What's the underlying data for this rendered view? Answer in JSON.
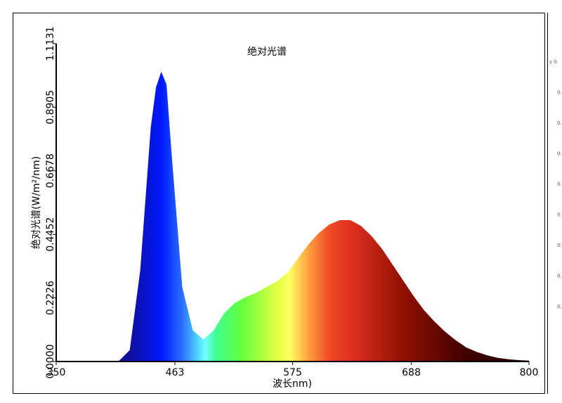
{
  "chart_data": {
    "type": "area",
    "title": "绝对光谱",
    "x_label": "波长nm)",
    "y_label": "绝对光谱(W/m²/nm)",
    "x": [
      400,
      410,
      420,
      430,
      440,
      445,
      450,
      455,
      460,
      470,
      480,
      490,
      500,
      510,
      520,
      530,
      540,
      550,
      560,
      570,
      580,
      590,
      600,
      610,
      620,
      630,
      640,
      650,
      660,
      670,
      680,
      690,
      700,
      710,
      720,
      730,
      740,
      750,
      760,
      770,
      780,
      790,
      800
    ],
    "values": [
      0,
      0.003,
      0.04,
      0.32,
      0.82,
      0.96,
      1.015,
      0.97,
      0.72,
      0.26,
      0.11,
      0.077,
      0.11,
      0.17,
      0.205,
      0.225,
      0.24,
      0.26,
      0.28,
      0.31,
      0.36,
      0.41,
      0.45,
      0.48,
      0.495,
      0.495,
      0.475,
      0.44,
      0.395,
      0.34,
      0.285,
      0.23,
      0.18,
      0.14,
      0.105,
      0.075,
      0.05,
      0.034,
      0.022,
      0.013,
      0.008,
      0.005,
      0.003
    ],
    "color_stops": [
      {
        "x": 420,
        "color": "#10109a"
      },
      {
        "x": 450,
        "color": "#0018ff"
      },
      {
        "x": 470,
        "color": "#2a70ff"
      },
      {
        "x": 485,
        "color": "#50d8ff"
      },
      {
        "x": 492,
        "color": "#70ffff"
      },
      {
        "x": 502,
        "color": "#40ff90"
      },
      {
        "x": 525,
        "color": "#60ff40"
      },
      {
        "x": 560,
        "color": "#e0ff40"
      },
      {
        "x": 572,
        "color": "#ffff60"
      },
      {
        "x": 590,
        "color": "#ffa040"
      },
      {
        "x": 610,
        "color": "#f04a24"
      },
      {
        "x": 630,
        "color": "#e03020"
      },
      {
        "x": 680,
        "color": "#901000"
      },
      {
        "x": 740,
        "color": "#400000"
      },
      {
        "x": 800,
        "color": "#200000"
      }
    ],
    "xlim": [
      350,
      800
    ],
    "xticks": [
      350,
      463,
      575,
      688,
      800
    ],
    "ylim": [
      0,
      1.1131
    ],
    "yticks": [
      {
        "value": 0,
        "label": "0.0000"
      },
      0.2226,
      0.4452,
      0.6678,
      0.8905,
      1.1131
    ],
    "grid": false
  },
  "side_panel": [
    "y 0.",
    "0.",
    "0.",
    "0.",
    "0.",
    "0.",
    "0.",
    "0.",
    "0."
  ]
}
